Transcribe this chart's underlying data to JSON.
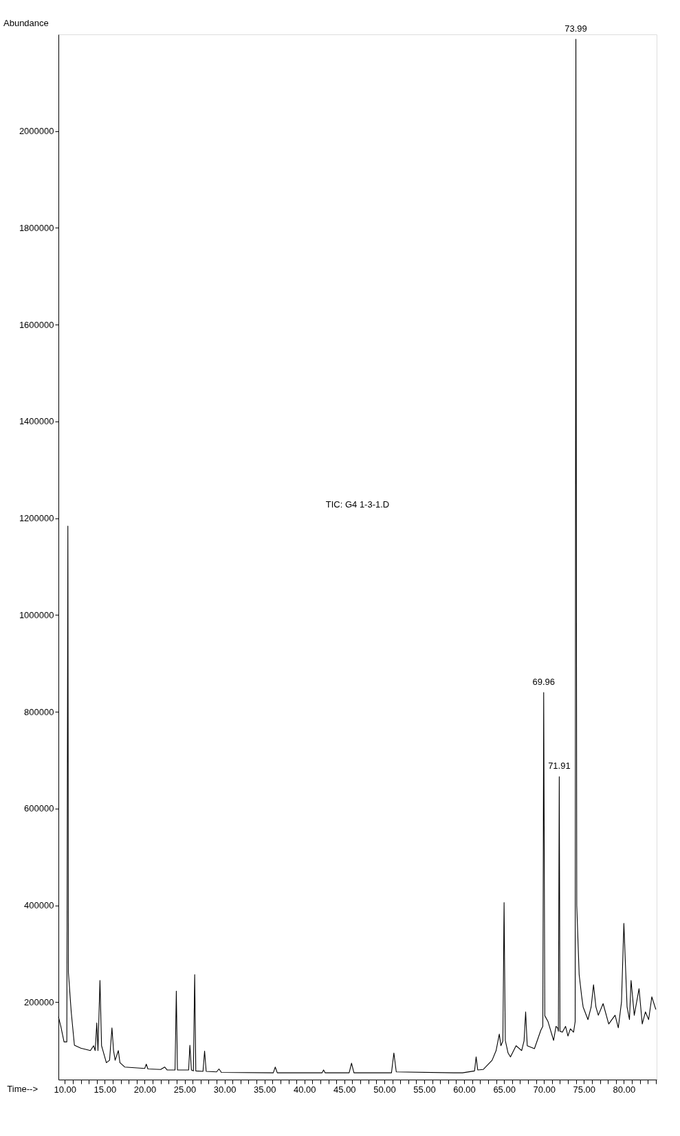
{
  "chart_data": {
    "type": "line",
    "title": "TIC: G4 1-3-1.D",
    "xlabel": "Time-->",
    "ylabel": "Abundance",
    "x": [
      9.2,
      9.5,
      9.9,
      10.25,
      10.38,
      10.45,
      10.8,
      11.2,
      12.0,
      13.2,
      13.6,
      13.8,
      14.0,
      14.15,
      14.4,
      14.6,
      15.2,
      15.6,
      15.9,
      16.1,
      16.3,
      16.7,
      16.9,
      17.5,
      20.0,
      20.2,
      20.4,
      22.0,
      22.5,
      22.8,
      23.8,
      23.96,
      24.1,
      25.5,
      25.66,
      25.85,
      26.1,
      26.26,
      26.4,
      27.3,
      27.5,
      27.7,
      29.0,
      29.3,
      29.6,
      36.1,
      36.35,
      36.6,
      42.2,
      42.4,
      42.6,
      45.6,
      45.9,
      46.2,
      50.9,
      51.2,
      51.5,
      58.7,
      59.8,
      61.3,
      61.5,
      61.7,
      62.4,
      63.5,
      64.0,
      64.4,
      64.6,
      64.85,
      65.0,
      65.15,
      65.5,
      65.8,
      66.5,
      67.2,
      67.5,
      67.7,
      67.9,
      68.8,
      69.6,
      69.85,
      69.96,
      70.1,
      70.5,
      71.2,
      71.5,
      71.7,
      71.8,
      71.91,
      72.0,
      72.3,
      72.7,
      73.0,
      73.3,
      73.7,
      73.9,
      73.99,
      74.1,
      74.4,
      74.7,
      74.9,
      75.5,
      75.9,
      76.2,
      76.5,
      76.8,
      77.4,
      78.1,
      78.9,
      79.3,
      79.7,
      80.0,
      80.4,
      80.7,
      80.9,
      81.3,
      81.9,
      82.3,
      82.7,
      83.1,
      83.5,
      84.0
    ],
    "series": [
      {
        "color": "#000000",
        "values": [
          170000,
          150000,
          118000,
          118000,
          1184000,
          261000,
          180000,
          111000,
          105000,
          100000,
          110000,
          100000,
          157000,
          100000,
          245000,
          110000,
          75000,
          80000,
          147000,
          100000,
          80000,
          100000,
          75000,
          66000,
          63000,
          72000,
          62000,
          61000,
          66000,
          60000,
          60000,
          223000,
          60000,
          60000,
          111000,
          60000,
          58000,
          257000,
          58000,
          57000,
          99000,
          57000,
          56000,
          62000,
          55000,
          54000,
          66000,
          54000,
          54000,
          60000,
          54000,
          54000,
          74000,
          54000,
          54000,
          95000,
          56000,
          54000,
          54000,
          58000,
          87000,
          60000,
          61000,
          80000,
          100000,
          134000,
          110000,
          120000,
          406000,
          121000,
          95000,
          87000,
          110000,
          100000,
          120000,
          180000,
          110000,
          104000,
          142000,
          150000,
          840000,
          172000,
          160000,
          121000,
          150000,
          147000,
          140000,
          666000,
          140000,
          138000,
          150000,
          130000,
          145000,
          138000,
          160000,
          2190000,
          400000,
          257000,
          214000,
          190000,
          164000,
          190000,
          236000,
          190000,
          173000,
          197000,
          155000,
          173000,
          147000,
          200000,
          363000,
          190000,
          164000,
          245000,
          173000,
          228000,
          155000,
          180000,
          164000,
          211000,
          185000
        ]
      }
    ],
    "xlim": [
      9.2,
      84.1
    ],
    "ylim": [
      40000,
      2200000
    ],
    "xticks": [
      {
        "value": 10,
        "label": "10.00"
      },
      {
        "value": 11,
        "label": null
      },
      {
        "value": 12,
        "label": null
      },
      {
        "value": 13,
        "label": null
      },
      {
        "value": 14,
        "label": null
      },
      {
        "value": 15,
        "label": "15.00"
      },
      {
        "value": 16,
        "label": null
      },
      {
        "value": 17,
        "label": null
      },
      {
        "value": 18,
        "label": null
      },
      {
        "value": 19,
        "label": null
      },
      {
        "value": 20,
        "label": "20.00"
      },
      {
        "value": 21,
        "label": null
      },
      {
        "value": 22,
        "label": null
      },
      {
        "value": 23,
        "label": null
      },
      {
        "value": 24,
        "label": null
      },
      {
        "value": 25,
        "label": "25.00"
      },
      {
        "value": 26,
        "label": null
      },
      {
        "value": 27,
        "label": null
      },
      {
        "value": 28,
        "label": null
      },
      {
        "value": 29,
        "label": null
      },
      {
        "value": 30,
        "label": "30.00"
      },
      {
        "value": 31,
        "label": null
      },
      {
        "value": 32,
        "label": null
      },
      {
        "value": 33,
        "label": null
      },
      {
        "value": 34,
        "label": null
      },
      {
        "value": 35,
        "label": "35.00"
      },
      {
        "value": 36,
        "label": null
      },
      {
        "value": 37,
        "label": null
      },
      {
        "value": 38,
        "label": null
      },
      {
        "value": 39,
        "label": null
      },
      {
        "value": 40,
        "label": "40.00"
      },
      {
        "value": 41,
        "label": null
      },
      {
        "value": 42,
        "label": null
      },
      {
        "value": 43,
        "label": null
      },
      {
        "value": 44,
        "label": null
      },
      {
        "value": 45,
        "label": "45.00"
      },
      {
        "value": 46,
        "label": null
      },
      {
        "value": 47,
        "label": null
      },
      {
        "value": 48,
        "label": null
      },
      {
        "value": 49,
        "label": null
      },
      {
        "value": 50,
        "label": "50.00"
      },
      {
        "value": 51,
        "label": null
      },
      {
        "value": 52,
        "label": null
      },
      {
        "value": 53,
        "label": null
      },
      {
        "value": 54,
        "label": null
      },
      {
        "value": 55,
        "label": "55.00"
      },
      {
        "value": 56,
        "label": null
      },
      {
        "value": 57,
        "label": null
      },
      {
        "value": 58,
        "label": null
      },
      {
        "value": 59,
        "label": null
      },
      {
        "value": 60,
        "label": "60.00"
      },
      {
        "value": 61,
        "label": null
      },
      {
        "value": 62,
        "label": null
      },
      {
        "value": 63,
        "label": null
      },
      {
        "value": 64,
        "label": null
      },
      {
        "value": 65,
        "label": "65.00"
      },
      {
        "value": 66,
        "label": null
      },
      {
        "value": 67,
        "label": null
      },
      {
        "value": 68,
        "label": null
      },
      {
        "value": 69,
        "label": null
      },
      {
        "value": 70,
        "label": "70.00"
      },
      {
        "value": 71,
        "label": null
      },
      {
        "value": 72,
        "label": null
      },
      {
        "value": 73,
        "label": null
      },
      {
        "value": 74,
        "label": null
      },
      {
        "value": 75,
        "label": "75.00"
      },
      {
        "value": 76,
        "label": null
      },
      {
        "value": 77,
        "label": null
      },
      {
        "value": 78,
        "label": null
      },
      {
        "value": 79,
        "label": null
      },
      {
        "value": 80,
        "label": "80.00"
      },
      {
        "value": 81,
        "label": null
      },
      {
        "value": 82,
        "label": null
      },
      {
        "value": 83,
        "label": null
      },
      {
        "value": 84,
        "label": null
      }
    ],
    "yticks": [
      200000,
      400000,
      600000,
      800000,
      1000000,
      1200000,
      1400000,
      1600000,
      1800000,
      2000000
    ],
    "annotations": [
      {
        "text": "69.96",
        "x": 69.96,
        "y": 840000
      },
      {
        "text": "71.91",
        "x": 71.91,
        "y": 666000
      },
      {
        "text": "73.99",
        "x": 73.99,
        "y": 2190000
      }
    ]
  }
}
